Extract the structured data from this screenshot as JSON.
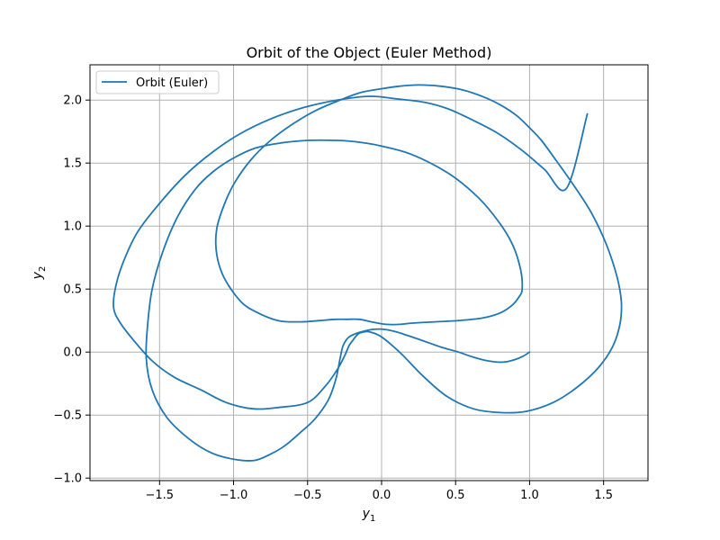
{
  "chart_data": {
    "type": "line",
    "title": "Orbit of the Object (Euler Method)",
    "xlabel_base": "y",
    "xlabel_sub": "1",
    "ylabel_base": "y",
    "ylabel_sub": "2",
    "xlim": [
      -1.97,
      1.8
    ],
    "ylim": [
      -1.02,
      2.28
    ],
    "xticks": [
      -1.5,
      -1.0,
      -0.5,
      0.0,
      0.5,
      1.0,
      1.5
    ],
    "xtick_labels": [
      "−1.5",
      "−1.0",
      "−0.5",
      "0.0",
      "0.5",
      "1.0",
      "1.5"
    ],
    "yticks": [
      -1.0,
      -0.5,
      0.0,
      0.5,
      1.0,
      1.5,
      2.0
    ],
    "ytick_labels": [
      "−1.0",
      "−0.5",
      "0.0",
      "0.5",
      "1.0",
      "1.5",
      "2.0"
    ],
    "grid": true,
    "legend": "upper-left",
    "series": [
      {
        "name": "Orbit (Euler)",
        "color": "#1f77b4",
        "x": [
          1.0,
          0.96,
          0.9,
          0.82,
          0.72,
          0.62,
          0.52,
          0.4,
          0.28,
          0.18,
          0.1,
          0.02,
          -0.06,
          -0.14,
          -0.22,
          -0.26,
          -0.28,
          -0.31,
          -0.36,
          -0.45,
          -0.55,
          -0.65,
          -0.75,
          -0.86,
          -1.0,
          -1.15,
          -1.3,
          -1.45,
          -1.55,
          -1.59,
          -1.58,
          -1.55,
          -1.48,
          -1.38,
          -1.26,
          -1.14,
          -1.0,
          -0.85,
          -0.68,
          -0.5,
          -0.3,
          -0.18,
          -0.02,
          0.2,
          0.45,
          0.65,
          0.8,
          0.89,
          0.94,
          0.95,
          0.93,
          0.88,
          0.8,
          0.68,
          0.52,
          0.36,
          0.21,
          0.12,
          0.03,
          -0.07,
          -0.15,
          -0.24,
          -0.31,
          -0.42,
          -0.55,
          -0.7,
          -0.85,
          -0.95,
          -1.05,
          -1.1,
          -1.12,
          -1.11,
          -1.06,
          -0.99,
          -0.88,
          -0.75,
          -0.6,
          -0.44,
          -0.28,
          -0.14,
          0.0,
          0.12,
          0.25,
          0.4,
          0.55,
          0.7,
          0.82,
          0.92,
          1.0,
          1.08,
          1.18,
          1.3,
          1.42,
          1.52,
          1.59,
          1.62,
          1.61,
          1.56,
          1.46,
          1.32,
          1.16,
          0.98,
          0.8,
          0.62,
          0.44,
          0.28,
          0.13,
          0.0,
          -0.08,
          -0.12,
          -0.15,
          -0.17,
          -0.19,
          -0.22,
          -0.25,
          -0.3,
          -0.38,
          -0.5,
          -0.7,
          -0.87,
          -1.05,
          -1.22,
          -1.4,
          -1.55,
          -1.68,
          -1.77,
          -1.81,
          -1.8,
          -1.75,
          -1.65,
          -1.5,
          -1.33,
          -1.15,
          -0.96,
          -0.75,
          -0.53,
          -0.3,
          -0.08,
          0.1,
          0.3,
          0.45,
          0.6,
          0.78,
          0.95,
          1.1,
          1.25,
          1.39
        ],
        "y": [
          0.0,
          -0.03,
          -0.06,
          -0.08,
          -0.07,
          -0.04,
          0.0,
          0.04,
          0.09,
          0.13,
          0.16,
          0.18,
          0.18,
          0.16,
          0.12,
          0.05,
          -0.05,
          -0.22,
          -0.38,
          -0.53,
          -0.64,
          -0.74,
          -0.81,
          -0.86,
          -0.85,
          -0.8,
          -0.69,
          -0.52,
          -0.3,
          -0.05,
          0.22,
          0.5,
          0.79,
          1.07,
          1.29,
          1.43,
          1.54,
          1.62,
          1.66,
          1.68,
          1.68,
          1.67,
          1.64,
          1.57,
          1.42,
          1.23,
          1.02,
          0.84,
          0.65,
          0.5,
          0.44,
          0.37,
          0.31,
          0.27,
          0.25,
          0.24,
          0.23,
          0.22,
          0.22,
          0.24,
          0.26,
          0.26,
          0.26,
          0.25,
          0.24,
          0.25,
          0.32,
          0.4,
          0.56,
          0.7,
          0.85,
          1.0,
          1.18,
          1.35,
          1.53,
          1.68,
          1.81,
          1.92,
          2.0,
          2.06,
          2.09,
          2.11,
          2.12,
          2.11,
          2.08,
          2.02,
          1.95,
          1.87,
          1.78,
          1.68,
          1.52,
          1.32,
          1.1,
          0.85,
          0.6,
          0.4,
          0.22,
          0.04,
          -0.13,
          -0.28,
          -0.4,
          -0.47,
          -0.48,
          -0.45,
          -0.35,
          -0.19,
          -0.01,
          0.12,
          0.16,
          0.16,
          0.15,
          0.13,
          0.1,
          0.05,
          -0.03,
          -0.14,
          -0.27,
          -0.4,
          -0.44,
          -0.45,
          -0.4,
          -0.3,
          -0.2,
          -0.07,
          0.1,
          0.24,
          0.35,
          0.5,
          0.7,
          0.95,
          1.18,
          1.4,
          1.58,
          1.73,
          1.85,
          1.94,
          2.0,
          2.03,
          2.01,
          1.98,
          1.93,
          1.85,
          1.74,
          1.6,
          1.45,
          1.3,
          1.89
        ]
      }
    ]
  }
}
